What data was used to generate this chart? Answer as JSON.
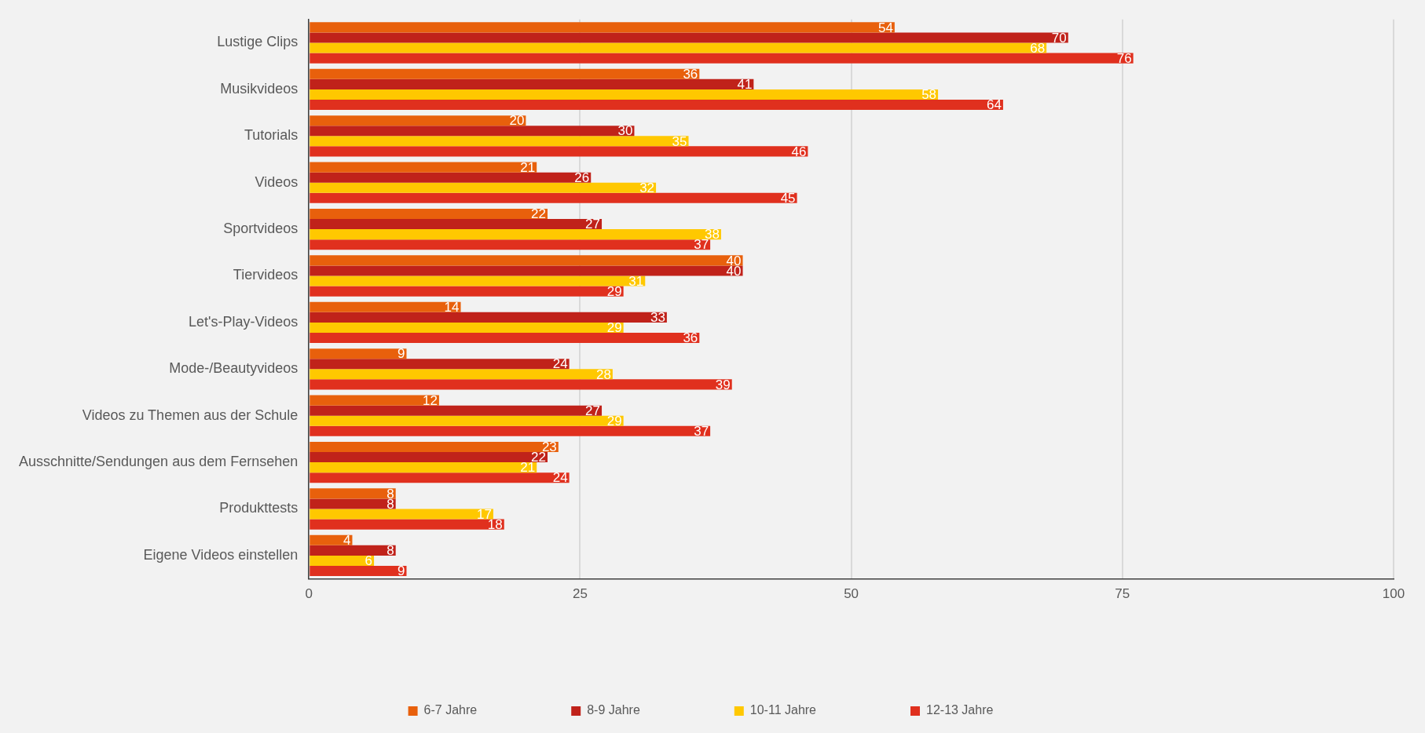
{
  "chart_data": {
    "type": "bar",
    "orientation": "horizontal",
    "categories": [
      "Lustige Clips",
      "Musikvideos",
      "Tutorials",
      "Videos",
      "Sportvideos",
      "Tiervideos",
      "Let's-Play-Videos",
      "Mode-/Beautyvideos",
      "Videos zu Themen aus der Schule",
      "Ausschnitte/Sendungen aus dem Fernsehen",
      "Produkttests",
      "Eigene Videos einstellen"
    ],
    "series": [
      {
        "name": "6-7 Jahre",
        "color": "#e8600c",
        "values": [
          54,
          36,
          20,
          21,
          22,
          40,
          14,
          9,
          12,
          23,
          8,
          4
        ]
      },
      {
        "name": "8-9 Jahre",
        "color": "#c0221a",
        "values": [
          70,
          41,
          30,
          26,
          27,
          40,
          33,
          24,
          27,
          22,
          8,
          8
        ]
      },
      {
        "name": "10-11 Jahre",
        "color": "#ffc800",
        "values": [
          68,
          58,
          35,
          32,
          38,
          31,
          29,
          28,
          29,
          21,
          17,
          6
        ]
      },
      {
        "name": "12-13 Jahre",
        "color": "#e0301e",
        "values": [
          76,
          64,
          46,
          45,
          37,
          29,
          36,
          39,
          37,
          24,
          18,
          9
        ]
      }
    ],
    "xlim": [
      0,
      100
    ],
    "xticks": [
      0,
      25,
      50,
      75,
      100
    ],
    "grid": "x",
    "legend": "bottom",
    "data_labels": true
  }
}
